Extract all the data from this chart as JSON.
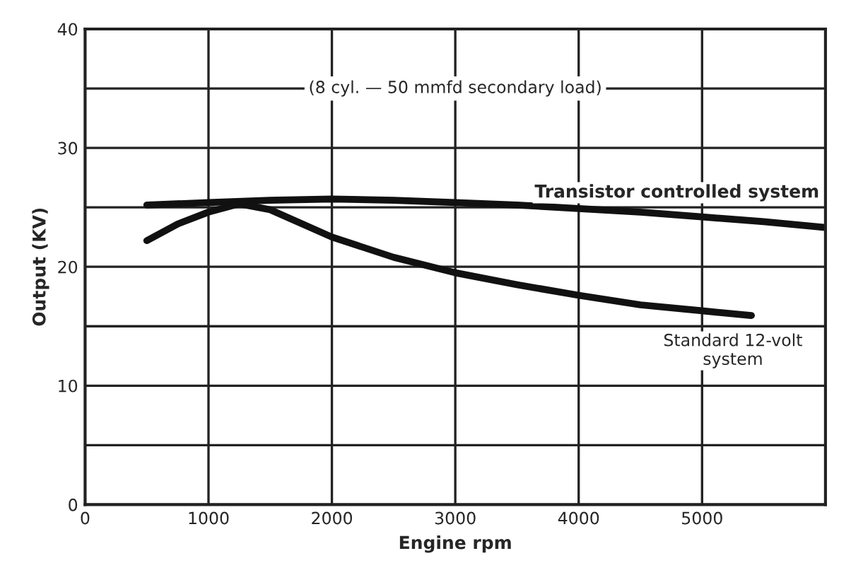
{
  "chart_data": {
    "type": "line",
    "xlabel": "Engine rpm",
    "ylabel": "Output (KV)",
    "xlim": [
      0,
      6000
    ],
    "ylim": [
      0,
      40
    ],
    "xticks": [
      0,
      1000,
      2000,
      3000,
      4000,
      5000,
      {
        "value": 6000,
        "label": null
      }
    ],
    "yticks": [
      0,
      {
        "value": 5,
        "label": null
      },
      10,
      {
        "value": 15,
        "label": null
      },
      20,
      {
        "value": 25,
        "label": null
      },
      30,
      {
        "value": 35,
        "label": null
      },
      40
    ],
    "grid": true,
    "legend": false,
    "marker": "none",
    "line_style": "solid",
    "annotations": [
      "(8 cyl. — 50 mmfd secondary load)"
    ],
    "series": [
      {
        "name": "Transistor controlled system",
        "color": "#111111",
        "x": [
          500,
          1000,
          1500,
          2000,
          2500,
          3000,
          3500,
          4000,
          4500,
          5000,
          5500,
          6000
        ],
        "values": [
          25.2,
          25.4,
          25.6,
          25.7,
          25.6,
          25.4,
          25.2,
          24.9,
          24.6,
          24.2,
          23.8,
          23.3
        ]
      },
      {
        "name": "Standard 12-volt\nsystem",
        "color": "#111111",
        "x": [
          500,
          750,
          1000,
          1250,
          1500,
          2000,
          2500,
          3000,
          3500,
          4000,
          4500,
          5000,
          5400
        ],
        "values": [
          22.2,
          23.6,
          24.6,
          25.3,
          24.8,
          22.5,
          20.8,
          19.5,
          18.5,
          17.6,
          16.8,
          16.3,
          15.9
        ]
      }
    ]
  }
}
